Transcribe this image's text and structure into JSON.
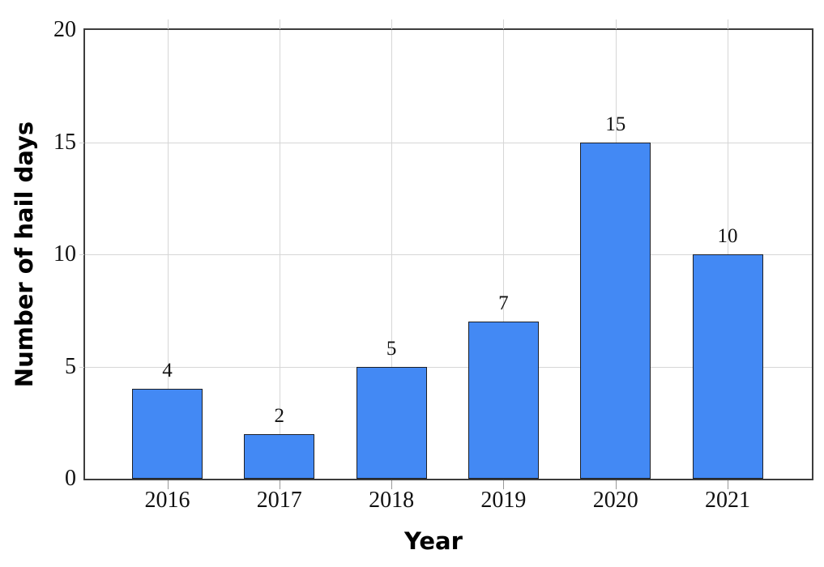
{
  "chart_data": {
    "type": "bar",
    "title": "",
    "xlabel": "Year",
    "ylabel": "Number of hail days",
    "categories": [
      "2016",
      "2017",
      "2018",
      "2019",
      "2020",
      "2021"
    ],
    "values": [
      4,
      2,
      5,
      7,
      15,
      10
    ],
    "bar_value_labels": [
      "4",
      "2",
      "5",
      "7",
      "15",
      "10"
    ],
    "ylim": [
      0,
      20
    ],
    "yticks": [
      0,
      5,
      10,
      15,
      20
    ],
    "ytick_labels": [
      "0",
      "5",
      "10",
      "15",
      "20"
    ],
    "grid": true,
    "legend": "none",
    "colors": {
      "bar_fill": "#4389f4",
      "bar_border": "#1c1f26",
      "grid_line": "#d6d6d6",
      "axis_frame": "#3d3d3d",
      "bottom_tick": "#999999",
      "outer_tick": "#d4d4d4",
      "text": "#111111",
      "background": "#ffffff"
    }
  }
}
